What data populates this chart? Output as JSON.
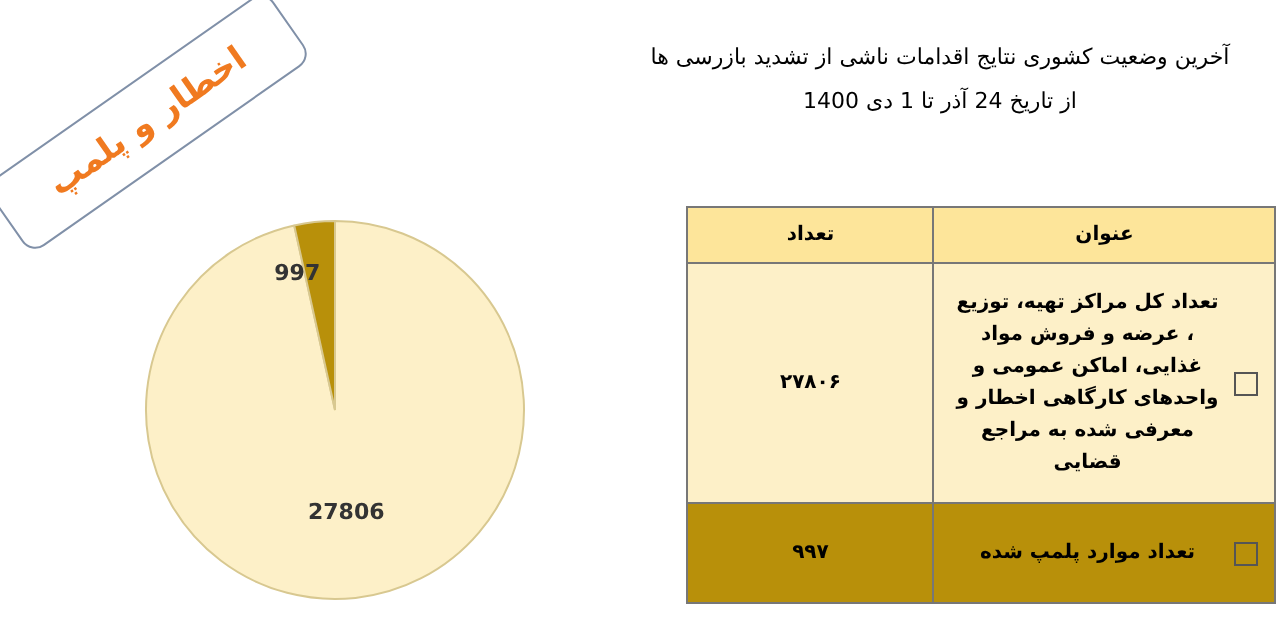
{
  "chart_data": {
    "type": "pie",
    "title": "آخرین وضعیت کشوری نتایج اقدامات ناشی از تشدید بازرسی ها",
    "subtitle": "از تاریخ 24 آذر تا 1 دی 1400",
    "categories": [
      "تعداد کل مراکز تهیه، توزیع ، عرضه و فروش مواد غذایی، اماکن عمومی و واحدهای کارگاهی اخطار و معرفی شده به مراجع قضایی",
      "تعداد موارد پلمپ شده"
    ],
    "values": [
      27806,
      997
    ],
    "colors": [
      "#fdf0c8",
      "#b8900a"
    ],
    "data_labels": true,
    "legend": "right",
    "annotations": [
      "اخطار و پلمپ",
      "عنوان",
      "تعداد",
      "۲۷۸۰۶",
      "۹۹۷"
    ]
  }
}
